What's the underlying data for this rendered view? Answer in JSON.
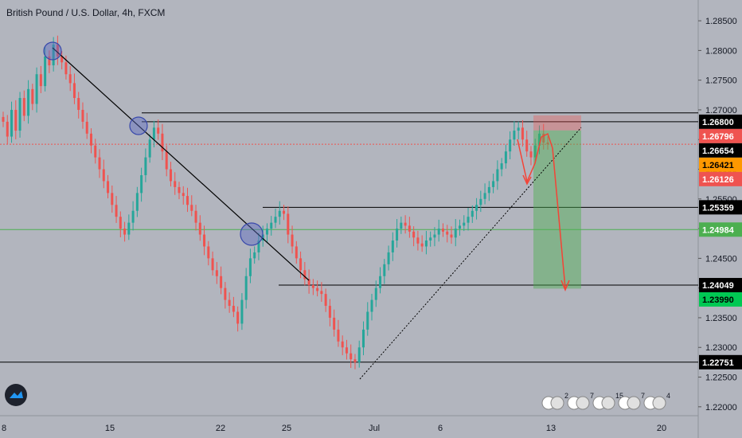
{
  "header": {
    "title": "British Pound / U.S. Dollar, 4h, FXCM"
  },
  "colors": {
    "up": "#26a69a",
    "down": "#ef5350",
    "bg": "#b2b5be",
    "axis_bg": "#b2b5be"
  },
  "chart_data": {
    "type": "candlestick",
    "title": "British Pound / U.S. Dollar, 4h, FXCM",
    "ylim": [
      1.2185,
      1.2885
    ],
    "y_ticks": [
      "1.28500",
      "1.28000",
      "1.27500",
      "1.27000",
      "1.26500",
      "1.26000",
      "1.25500",
      "1.25000",
      "1.24500",
      "1.24000",
      "1.23500",
      "1.23000",
      "1.22500",
      "1.22000"
    ],
    "x_ticks": [
      "8",
      "15",
      "22",
      "25",
      "Jul",
      "6",
      "13",
      "20"
    ],
    "price_labels": [
      {
        "text": "1.26800",
        "value": 1.268,
        "bg": "#000000",
        "fg": "#ffffff"
      },
      {
        "text": "1.26796",
        "value": 1.26796,
        "bg": "#ef5350",
        "fg": "#ffffff"
      },
      {
        "text": "1.26654",
        "value": 1.26654,
        "bg": "#000000",
        "fg": "#ffffff"
      },
      {
        "text": "1.26421",
        "value": 1.26421,
        "bg": "#ff9800",
        "fg": "#000000"
      },
      {
        "text": "1.26126",
        "value": 1.26126,
        "bg": "#ef5350",
        "fg": "#ffffff"
      },
      {
        "text": "1.25359",
        "value": 1.25359,
        "bg": "#000000",
        "fg": "#ffffff"
      },
      {
        "text": "1.24984",
        "value": 1.24984,
        "bg": "#4caf50",
        "fg": "#ffffff"
      },
      {
        "text": "1.24049",
        "value": 1.24049,
        "bg": "#000000",
        "fg": "#ffffff"
      },
      {
        "text": "1.23990",
        "value": 1.2399,
        "bg": "#00c853",
        "fg": "#000000"
      },
      {
        "text": "1.22751",
        "value": 1.22751,
        "bg": "#000000",
        "fg": "#ffffff"
      }
    ],
    "series": [
      {
        "name": "",
        "close_path": [
          1.268,
          1.2655,
          1.27,
          1.2665,
          1.272,
          1.269,
          1.2735,
          1.271,
          1.276,
          1.274,
          1.279,
          1.2775,
          1.281,
          1.279,
          1.278,
          1.276,
          1.2745,
          1.272,
          1.27,
          1.268,
          1.266,
          1.264,
          1.262,
          1.26,
          1.258,
          1.256,
          1.254,
          1.252,
          1.25,
          1.249,
          1.251,
          1.253,
          1.256,
          1.259,
          1.262,
          1.265,
          1.267,
          1.266,
          1.263,
          1.26,
          1.258,
          1.257,
          1.256,
          1.2555,
          1.254,
          1.253,
          1.251,
          1.249,
          1.247,
          1.245,
          1.243,
          1.242,
          1.24,
          1.238,
          1.237,
          1.236,
          1.234,
          1.238,
          1.242,
          1.245,
          1.246,
          1.248,
          1.249,
          1.25,
          1.251,
          1.252,
          1.253,
          1.2525,
          1.249,
          1.247,
          1.245,
          1.243,
          1.2415,
          1.2405,
          1.24,
          1.2395,
          1.239,
          1.237,
          1.235,
          1.233,
          1.231,
          1.23,
          1.229,
          1.228,
          1.2275,
          1.23,
          1.233,
          1.236,
          1.238,
          1.24,
          1.242,
          1.244,
          1.246,
          1.248,
          1.25,
          1.251,
          1.2505,
          1.2495,
          1.2485,
          1.2475,
          1.247,
          1.248,
          1.2485,
          1.249,
          1.25,
          1.2495,
          1.249,
          1.2485,
          1.25,
          1.2505,
          1.251,
          1.252,
          1.253,
          1.254,
          1.255,
          1.256,
          1.257,
          1.258,
          1.26,
          1.261,
          1.263,
          1.265,
          1.2665,
          1.267,
          1.265,
          1.263,
          1.262,
          1.264,
          1.266,
          1.2645,
          1.2642
        ]
      }
    ],
    "horizontal_lines": [
      1.268,
      1.26654,
      1.25359,
      1.24984,
      1.24049,
      1.22751
    ],
    "position": {
      "entry": 1.26654,
      "stop": 1.268,
      "target": 1.2399
    }
  },
  "events": {
    "badges": [
      "2",
      "7",
      "15",
      "7",
      "4"
    ]
  }
}
